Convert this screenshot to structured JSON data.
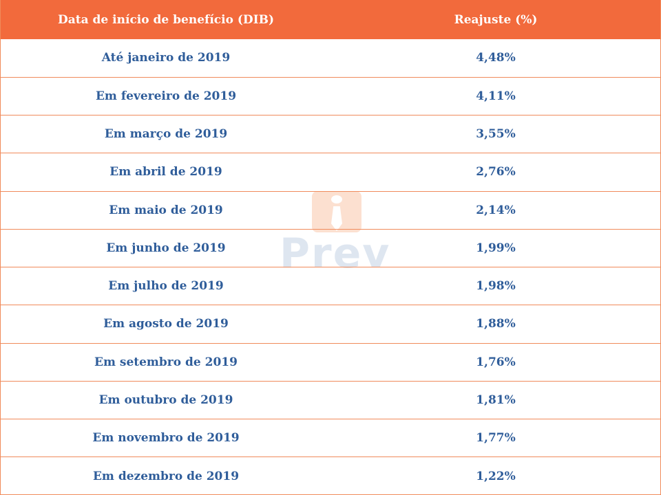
{
  "table": {
    "headers": {
      "col1": "Data de início de benefício (DIB)",
      "col2": "Reajuste (%)"
    },
    "rows": [
      {
        "period": "Até janeiro de 2019",
        "adjustment": "4,48%"
      },
      {
        "period": "Em fevereiro de 2019",
        "adjustment": "4,11%"
      },
      {
        "period": "Em março de 2019",
        "adjustment": "3,55%"
      },
      {
        "period": "Em abril de 2019",
        "adjustment": "2,76%"
      },
      {
        "period": "Em maio de 2019",
        "adjustment": "2,14%"
      },
      {
        "period": "Em junho de 2019",
        "adjustment": "1,99%"
      },
      {
        "period": "Em julho de 2019",
        "adjustment": "1,98%"
      },
      {
        "period": "Em agosto de 2019",
        "adjustment": "1,88%"
      },
      {
        "period": "Em setembro de 2019",
        "adjustment": "1,76%"
      },
      {
        "period": "Em outubro de 2019",
        "adjustment": "1,81%"
      },
      {
        "period": "Em novembro de 2019",
        "adjustment": "1,77%"
      },
      {
        "period": "Em dezembro de 2019",
        "adjustment": "1,22%"
      }
    ]
  },
  "watermark": {
    "text": "Prev",
    "icon": "tie-icon"
  },
  "colors": {
    "header_bg": "#f26a3c",
    "border": "#f08a5a",
    "text": "#2f5d9a"
  }
}
